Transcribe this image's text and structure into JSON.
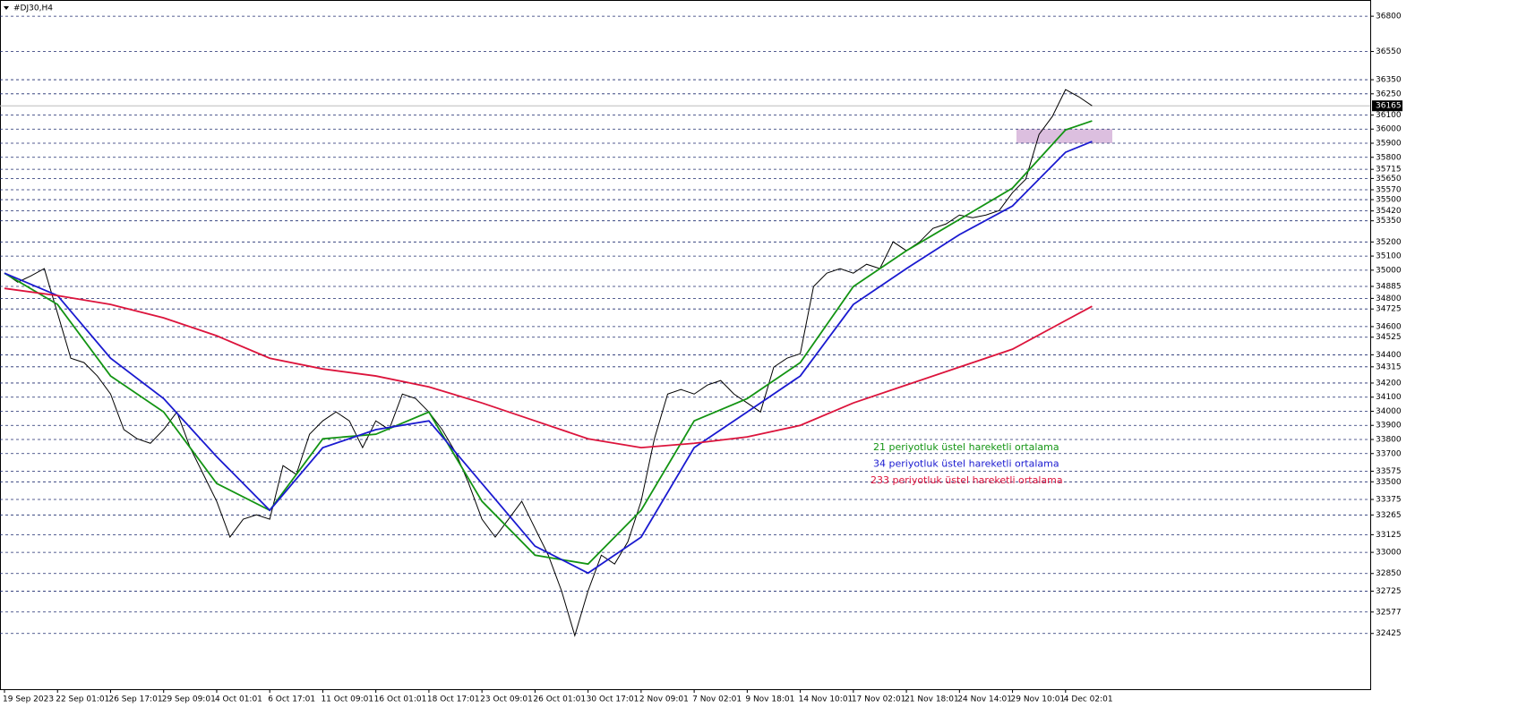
{
  "chart_data": {
    "type": "line",
    "title": "#DJ30,H4",
    "categories": [
      "19 Sep 2023",
      null,
      null,
      null,
      "22 Sep 01:01",
      null,
      null,
      null,
      "26 Sep 17:01",
      null,
      null,
      null,
      "29 Sep 09:01",
      null,
      null,
      null,
      "4 Oct 01:01",
      null,
      null,
      null,
      "6 Oct 17:01",
      null,
      null,
      null,
      "11 Oct 09:01",
      null,
      null,
      null,
      "16 Oct 01:01",
      null,
      null,
      null,
      "18 Oct 17:01",
      null,
      null,
      null,
      "23 Oct 09:01",
      null,
      null,
      null,
      "26 Oct 01:01",
      null,
      null,
      null,
      "30 Oct 17:01",
      null,
      null,
      null,
      "2 Nov 09:01",
      null,
      null,
      null,
      "7 Nov 02:01",
      null,
      null,
      null,
      "9 Nov 18:01",
      null,
      null,
      null,
      "14 Nov 10:01",
      null,
      null,
      null,
      "17 Nov 02:01",
      null,
      null,
      null,
      "21 Nov 18:01",
      null,
      null,
      null,
      "24 Nov 14:01",
      null,
      null,
      null,
      "29 Nov 10:01",
      null,
      null,
      null,
      "4 Dec 02:01",
      null,
      null
    ],
    "price": {
      "color": "#000000",
      "values": [
        34980,
        34915,
        34960,
        35011,
        34695,
        34376,
        34345,
        34250,
        34122,
        33870,
        33805,
        33773,
        33870,
        33995,
        33742,
        33552,
        33362,
        33108,
        33235,
        33266,
        33235,
        33615,
        33552,
        33837,
        33932,
        33995,
        33932,
        33742,
        33932,
        33870,
        34122,
        34090,
        33995,
        33870,
        33710,
        33488,
        33235,
        33108,
        33235,
        33362,
        33170,
        32980,
        32727,
        32410,
        32727,
        32980,
        32917,
        33075,
        33362,
        33805,
        34122,
        34154,
        34122,
        34186,
        34218,
        34122,
        34059,
        33995,
        34313,
        34376,
        34408,
        34884,
        34979,
        35011,
        34979,
        35042,
        35011,
        35201,
        35138,
        35201,
        35296,
        35328,
        35391,
        35372,
        35391,
        35423,
        35550,
        35645,
        35962,
        36089,
        36280,
        36229,
        36165
      ]
    },
    "series": [
      {
        "name": "21 periyotluk üstel hareketli ortalama",
        "color": "#139413",
        "x": [
          0,
          4,
          8,
          12,
          16,
          20,
          24,
          28,
          32,
          36,
          40,
          44,
          48,
          52,
          56,
          60,
          64,
          68,
          72,
          76,
          80,
          82
        ],
        "values": [
          34979,
          34757,
          34250,
          33995,
          33488,
          33298,
          33805,
          33837,
          33995,
          33362,
          32980,
          32917,
          33298,
          33932,
          34090,
          34345,
          34884,
          35138,
          35360,
          35582,
          35994,
          36058
        ]
      },
      {
        "name": "34 periyotluk üstel hareketli ortalama",
        "color": "#1a1ad0",
        "x": [
          0,
          4,
          8,
          12,
          16,
          20,
          24,
          28,
          32,
          36,
          40,
          44,
          48,
          52,
          56,
          60,
          64,
          68,
          72,
          76,
          80,
          82
        ],
        "values": [
          34979,
          34820,
          34376,
          34090,
          33678,
          33298,
          33742,
          33870,
          33932,
          33488,
          33044,
          32853,
          33108,
          33742,
          33995,
          34250,
          34757,
          35011,
          35252,
          35455,
          35836,
          35912
        ]
      },
      {
        "name": "233 periyotluk üstel hareketli ortalama",
        "color": "#dc143c",
        "x": [
          0,
          4,
          8,
          12,
          16,
          20,
          24,
          28,
          32,
          36,
          40,
          44,
          48,
          52,
          56,
          60,
          64,
          68,
          72,
          76,
          80,
          82
        ],
        "values": [
          34871,
          34820,
          34757,
          34662,
          34535,
          34376,
          34300,
          34250,
          34173,
          34059,
          33932,
          33805,
          33742,
          33773,
          33818,
          33900,
          34059,
          34186,
          34313,
          34440,
          34643,
          34744
        ]
      }
    ],
    "current": 36165,
    "zone": [
      35900,
      36000
    ],
    "zone_color": "#d8b8dc",
    "ylim": [
      32030,
      36915
    ],
    "yticks": [
      36800,
      36550,
      36350,
      36250,
      36100,
      36000,
      35900,
      35800,
      35715,
      35650,
      35570,
      35500,
      35420,
      35350,
      35200,
      35100,
      35000,
      34885,
      34800,
      34725,
      34600,
      34525,
      34400,
      34315,
      34200,
      34100,
      34000,
      33900,
      33800,
      33700,
      33575,
      33500,
      33375,
      33265,
      33125,
      33000,
      32850,
      32725,
      32577,
      32425
    ],
    "grid": true
  }
}
